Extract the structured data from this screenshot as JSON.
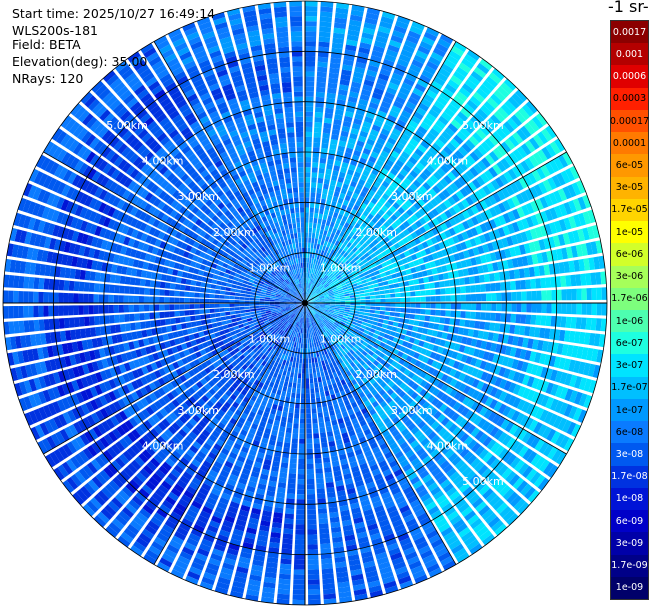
{
  "info": {
    "start_time": "Start time: 2025/10/27 16:49:14",
    "instrument": "WLS200s-181",
    "field": "Field: BETA",
    "elevation": "Elevation(deg): 35.00",
    "nrays": "NRays: 120"
  },
  "colorbar": {
    "title": "-1 sr-",
    "ticks": [
      {
        "label": "0.0017",
        "color": "#8b0000"
      },
      {
        "label": "0.001",
        "color": "#b40000"
      },
      {
        "label": "0.0006",
        "color": "#e00000"
      },
      {
        "label": "0.0003",
        "color": "#ff2000"
      },
      {
        "label": "0.00017",
        "color": "#ff5000"
      },
      {
        "label": "0.0001",
        "color": "#ff7a00"
      },
      {
        "label": "6e-05",
        "color": "#ff9800"
      },
      {
        "label": "3e-05",
        "color": "#ffb300"
      },
      {
        "label": "1.7e-05",
        "color": "#ffd400"
      },
      {
        "label": "1e-05",
        "color": "#ffff00"
      },
      {
        "label": "6e-06",
        "color": "#d2ff2a"
      },
      {
        "label": "3e-06",
        "color": "#a6ff5a"
      },
      {
        "label": "1.7e-06",
        "color": "#7dff7d"
      },
      {
        "label": "1e-06",
        "color": "#4dffb0"
      },
      {
        "label": "6e-07",
        "color": "#1effe0"
      },
      {
        "label": "3e-07",
        "color": "#00e4ff"
      },
      {
        "label": "1.7e-07",
        "color": "#00bfff"
      },
      {
        "label": "1e-07",
        "color": "#0099ff"
      },
      {
        "label": "6e-08",
        "color": "#0a7bff"
      },
      {
        "label": "3e-08",
        "color": "#0059f0"
      },
      {
        "label": "1.7e-08",
        "color": "#0032e0"
      },
      {
        "label": "1e-08",
        "color": "#0014d6"
      },
      {
        "label": "6e-09",
        "color": "#0000c8"
      },
      {
        "label": "3e-09",
        "color": "#0000a8"
      },
      {
        "label": "1.7e-09",
        "color": "#000088"
      },
      {
        "label": "1e-09",
        "color": "#00006a"
      }
    ]
  },
  "chart_data": {
    "type": "heatmap",
    "projection": "polar-ppi",
    "field": "BETA",
    "elevation_deg": 35.0,
    "n_rays": 120,
    "range_km_max": 6.0,
    "range_rings_km": [
      1.0,
      2.0,
      3.0,
      4.0,
      5.0
    ],
    "range_ring_labels": [
      "1.00km",
      "2.00km",
      "3.00km",
      "4.00km",
      "5.00km"
    ],
    "azimuth_lines_deg": [
      0,
      30,
      60,
      90,
      120,
      150,
      180,
      210,
      240,
      270,
      300,
      330
    ],
    "description_of_values": "backscatter coefficient mostly 3e-08 to 3e-07; lower (1e-08–3e-08) in west and south, higher (1e-07–3e-07) in north-east and east, outer ring 5–6 km brighter cyan in east",
    "sectors": [
      {
        "azimuth_deg_from": 0,
        "azimuth_deg_to": 30,
        "typical_value": 1e-07
      },
      {
        "azimuth_deg_from": 30,
        "azimuth_deg_to": 90,
        "typical_value": 1.7e-07
      },
      {
        "azimuth_deg_from": 90,
        "azimuth_deg_to": 150,
        "typical_value": 1e-07
      },
      {
        "azimuth_deg_from": 150,
        "azimuth_deg_to": 210,
        "typical_value": 4e-08
      },
      {
        "azimuth_deg_from": 210,
        "azimuth_deg_to": 270,
        "typical_value": 3e-08
      },
      {
        "azimuth_deg_from": 270,
        "azimuth_deg_to": 330,
        "typical_value": 4e-08
      },
      {
        "azimuth_deg_from": 330,
        "azimuth_deg_to": 360,
        "typical_value": 6e-08
      }
    ]
  }
}
